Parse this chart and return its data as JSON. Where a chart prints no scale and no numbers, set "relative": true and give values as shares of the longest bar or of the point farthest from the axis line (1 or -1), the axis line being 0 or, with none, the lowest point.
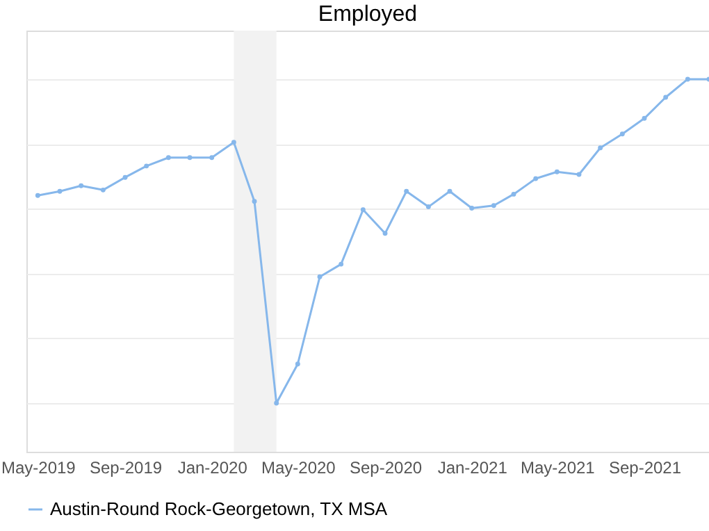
{
  "chart_data": {
    "type": "line",
    "title": "Employed",
    "relative": true,
    "x": [
      "2019-05",
      "2019-06",
      "2019-07",
      "2019-08",
      "2019-09",
      "2019-10",
      "2019-11",
      "2019-12",
      "2020-01",
      "2020-02",
      "2020-03",
      "2020-04",
      "2020-05",
      "2020-06",
      "2020-07",
      "2020-08",
      "2020-09",
      "2020-10",
      "2020-11",
      "2020-12",
      "2021-01",
      "2021-02",
      "2021-03",
      "2021-04",
      "2021-05",
      "2021-06",
      "2021-07",
      "2021-08",
      "2021-09",
      "2021-10",
      "2021-11",
      "2021-12"
    ],
    "series": [
      {
        "name": "Austin-Round Rock-Georgetown, TX MSA",
        "color": "#86b7eb",
        "values": [
          0.641,
          0.654,
          0.671,
          0.658,
          0.697,
          0.732,
          0.758,
          0.758,
          0.758,
          0.805,
          0.623,
          0,
          0.121,
          0.39,
          0.429,
          0.597,
          0.524,
          0.654,
          0.606,
          0.654,
          0.602,
          0.61,
          0.645,
          0.693,
          0.714,
          0.706,
          0.788,
          0.831,
          0.879,
          0.944,
          1,
          1
        ]
      }
    ],
    "xlim": [
      "2019-04-15",
      "2021-12"
    ],
    "xticks": [
      {
        "value": "2019-05",
        "label": "May-2019"
      },
      {
        "value": "2019-09",
        "label": "Sep-2019"
      },
      {
        "value": "2020-01",
        "label": "Jan-2020"
      },
      {
        "value": "2020-05",
        "label": "May-2020"
      },
      {
        "value": "2020-09",
        "label": "Sep-2020"
      },
      {
        "value": "2021-01",
        "label": "Jan-2021"
      },
      {
        "value": "2021-05",
        "label": "May-2021"
      },
      {
        "value": "2021-09",
        "label": "Sep-2021"
      }
    ],
    "bands": [
      {
        "axis": "x",
        "from": "2020-02",
        "to": "2020-04",
        "color": "#f2f2f2"
      }
    ],
    "grid": "y",
    "legend": "bottom",
    "marker": "circle",
    "line_style": "solid"
  }
}
